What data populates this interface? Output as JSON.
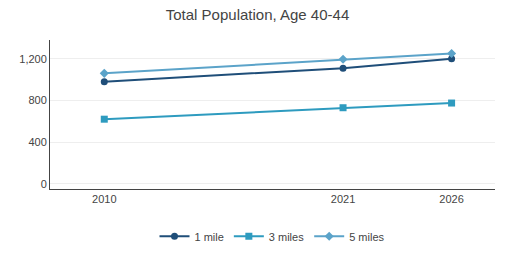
{
  "chart_data": {
    "type": "line",
    "title": "Total Population, Age 40-44",
    "x": [
      2010,
      2021,
      2026
    ],
    "series": [
      {
        "name": "1 mile",
        "color": "#1f4e79",
        "marker": "circle",
        "values": [
          980,
          1110,
          1200
        ]
      },
      {
        "name": "3 miles",
        "color": "#2e9bbf",
        "marker": "square",
        "values": [
          620,
          730,
          775
        ]
      },
      {
        "name": "5 miles",
        "color": "#5ba3c9",
        "marker": "diamond",
        "values": [
          1060,
          1195,
          1250
        ]
      }
    ],
    "xlim": [
      2007.5,
      2028
    ],
    "xticks": [
      2010,
      2021,
      2026
    ],
    "ylim": [
      -50,
      1380
    ],
    "yticks": [
      0,
      400,
      800,
      {
        "value": 1200,
        "label": "1,200"
      }
    ],
    "grid": "y",
    "legend": "bottom"
  }
}
